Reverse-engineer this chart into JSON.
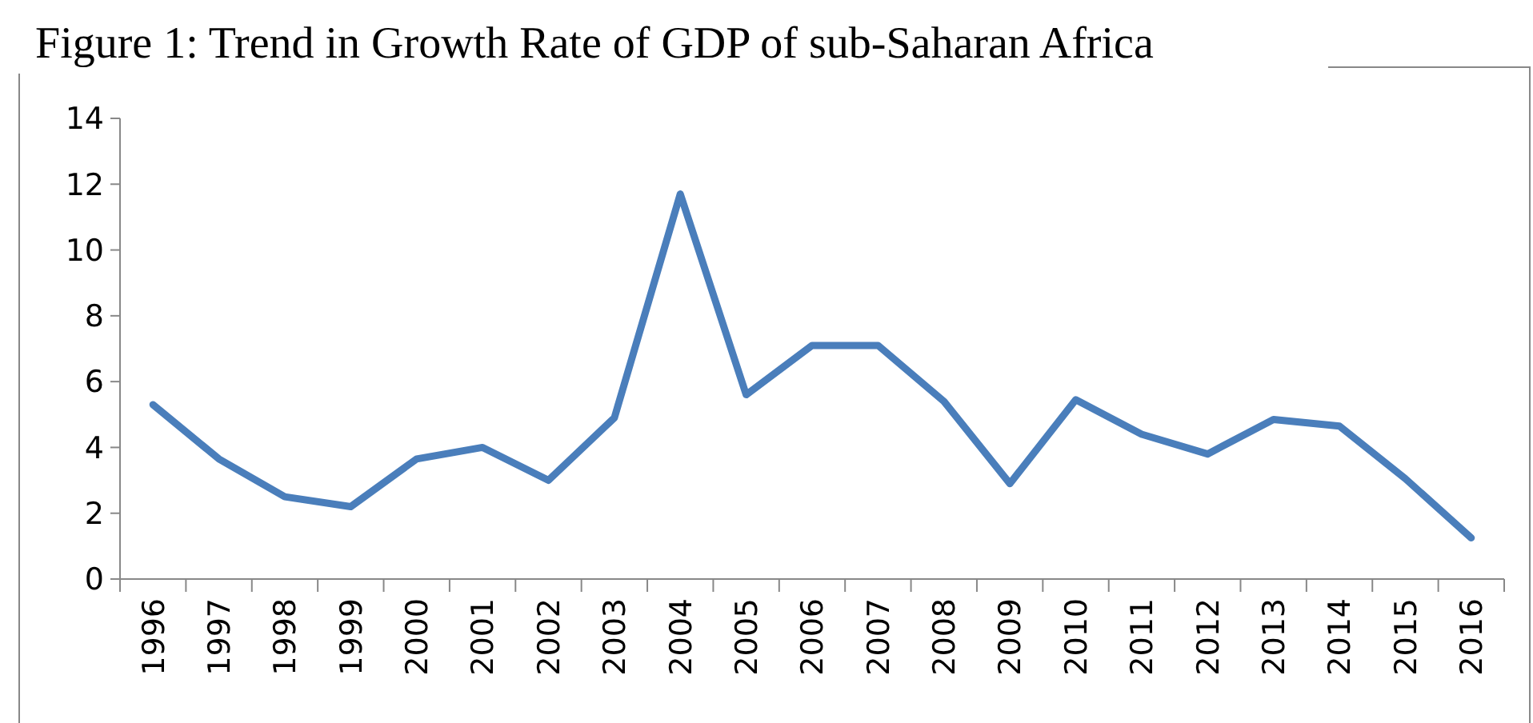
{
  "chart_data": {
    "type": "line",
    "title": "Figure 1: Trend in Growth Rate of GDP of sub-Saharan Africa",
    "categories": [
      "1996",
      "1997",
      "1998",
      "1999",
      "2000",
      "2001",
      "2002",
      "2003",
      "2004",
      "2005",
      "2006",
      "2007",
      "2008",
      "2009",
      "2010",
      "2011",
      "2012",
      "2013",
      "2014",
      "2015",
      "2016"
    ],
    "series": [
      {
        "color": "#4a7ebb",
        "values": [
          5.3,
          3.65,
          2.5,
          2.2,
          3.65,
          4.0,
          3.0,
          4.9,
          11.7,
          5.6,
          7.1,
          7.1,
          5.4,
          2.9,
          5.45,
          4.4,
          3.8,
          4.85,
          4.65,
          3.05,
          1.25
        ]
      }
    ],
    "ylim": [
      0,
      14
    ],
    "yticks": [
      0,
      2,
      4,
      6,
      8,
      10,
      12,
      14
    ],
    "grid": false,
    "marker": "none",
    "line_style": "solid"
  }
}
